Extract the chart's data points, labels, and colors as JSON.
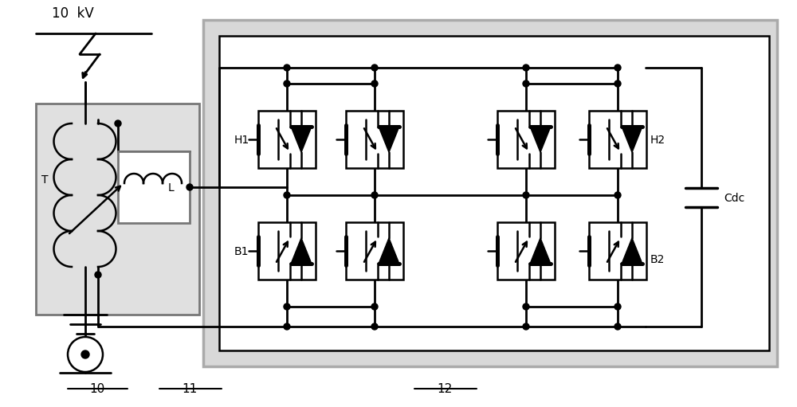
{
  "bg_color": "#ffffff",
  "box_color": "#aaaaaa",
  "line_color": "#000000",
  "label_10kv": "10  kV",
  "label_T": "T",
  "label_L": "L",
  "label_H1": "H1",
  "label_B1": "B1",
  "label_H2": "H2",
  "label_B2": "B2",
  "label_Cdc": "Cdc",
  "label_10": "10",
  "label_11": "11",
  "label_12": "12",
  "fig_width": 10.0,
  "fig_height": 5.11
}
